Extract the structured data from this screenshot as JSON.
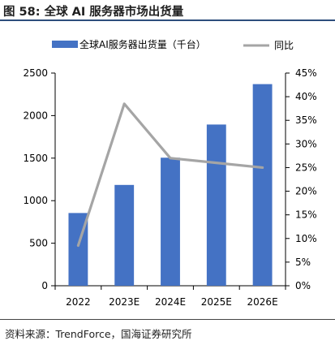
{
  "header": {
    "title": "图 58:  全球 AI 服务器市场出货量"
  },
  "footer": {
    "source": "资料来源：TrendForce，国海证券研究所"
  },
  "chart_data": {
    "type": "bar",
    "categories": [
      "2022",
      "2023E",
      "2024E",
      "2025E",
      "2026E"
    ],
    "series": [
      {
        "name": "全球AI服务器出货量（千台）",
        "kind": "bar",
        "axis": "left",
        "values": [
          855,
          1185,
          1505,
          1895,
          2370
        ]
      },
      {
        "name": "同比",
        "kind": "line",
        "axis": "right",
        "unit": "%",
        "values": [
          8.5,
          38.5,
          27.0,
          26.0,
          25.0
        ]
      }
    ],
    "left_axis": {
      "ylim": [
        0,
        2500
      ],
      "ticks": [
        "0",
        "500",
        "1000",
        "1500",
        "2000",
        "2500"
      ]
    },
    "right_axis": {
      "ylim": [
        0,
        45
      ],
      "ticks": [
        "0%",
        "5%",
        "10%",
        "15%",
        "20%",
        "25%",
        "30%",
        "35%",
        "40%",
        "45%"
      ]
    },
    "grid": false,
    "legend_position": "top",
    "colors": {
      "bar": "#4472c4",
      "line": "#a5a5a5"
    }
  }
}
